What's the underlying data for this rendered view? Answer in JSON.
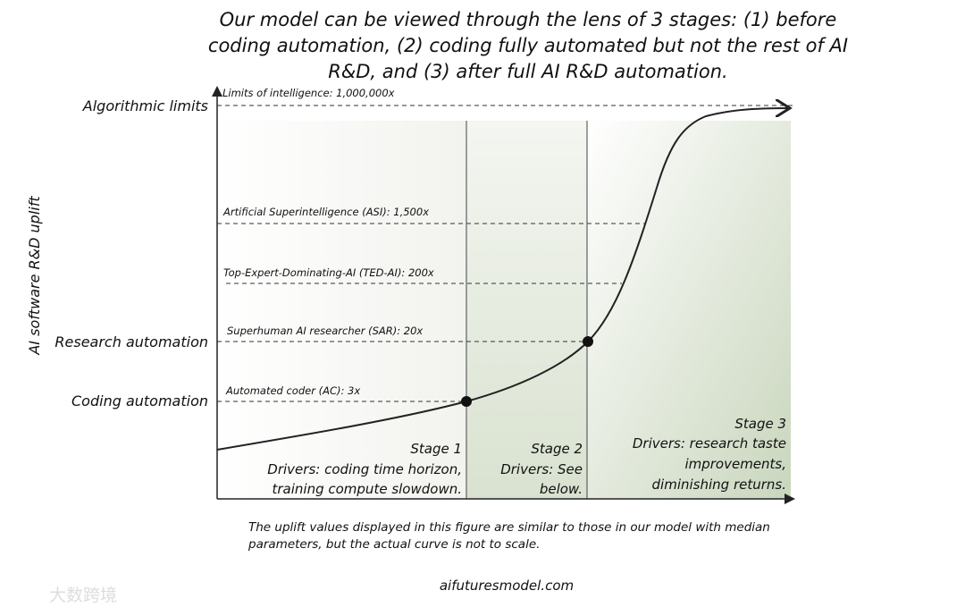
{
  "title": {
    "lines": [
      "Our model can be viewed through the lens of 3 stages: (1) before",
      "coding automation, (2) coding fully automated but not the rest of AI",
      "R&D, and (3) after full AI R&D automation."
    ]
  },
  "y_axis_label": "AI software R&D uplift",
  "y_labels": [
    "Algorithmic limits",
    "Research automation",
    "Coding automation"
  ],
  "reference_lines": [
    "Limits of intelligence: 1,000,000x",
    "Artificial Superintelligence (ASI): 1,500x",
    "Top-Expert-Dominating-AI (TED-AI): 200x",
    "Superhuman AI researcher (SAR): 20x",
    "Automated coder (AC): 3x"
  ],
  "stages": [
    {
      "lines": [
        "Stage 1",
        "Drivers: coding time horizon,",
        "training compute slowdown."
      ]
    },
    {
      "lines": [
        "Stage 2",
        "Drivers: See",
        "below."
      ]
    },
    {
      "lines": [
        "Stage 3",
        "Drivers: research taste",
        "improvements,",
        "diminishing returns."
      ]
    }
  ],
  "footnote": {
    "lines": [
      "The uplift values displayed in this figure are similar to those in our model with median",
      "parameters, but the actual curve is not to scale."
    ]
  },
  "website": "aifuturesmodel.com",
  "watermark": "大数跨境"
}
